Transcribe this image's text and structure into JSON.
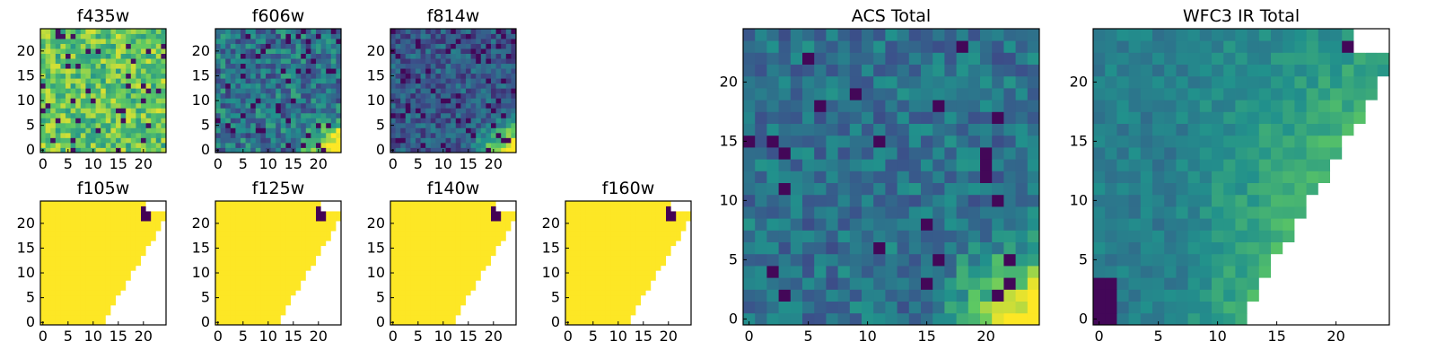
{
  "chart_data": [
    {
      "type": "heatmap",
      "title": "f435w",
      "xticks": [
        "0",
        "5",
        "10",
        "15",
        "20"
      ],
      "yticks": [
        "0",
        "5",
        "10",
        "15",
        "20"
      ],
      "xlim": [
        -0.5,
        24.5
      ],
      "ylim": [
        -0.5,
        24.5
      ],
      "style": "noise-bright"
    },
    {
      "type": "heatmap",
      "title": "f606w",
      "xticks": [
        "0",
        "5",
        "10",
        "15",
        "20"
      ],
      "yticks": [
        "0",
        "5",
        "10",
        "15",
        "20"
      ],
      "xlim": [
        -0.5,
        24.5
      ],
      "ylim": [
        -0.5,
        24.5
      ],
      "style": "noise-dim-corner"
    },
    {
      "type": "heatmap",
      "title": "f814w",
      "xticks": [
        "0",
        "5",
        "10",
        "15",
        "20"
      ],
      "yticks": [
        "0",
        "5",
        "10",
        "15",
        "20"
      ],
      "xlim": [
        -0.5,
        24.5
      ],
      "ylim": [
        -0.5,
        24.5
      ],
      "style": "noise-dark-corner"
    },
    {
      "type": "heatmap",
      "title": "f105w",
      "xticks": [
        "0",
        "5",
        "10",
        "15",
        "20"
      ],
      "yticks": [
        "0",
        "5",
        "10",
        "15",
        "20"
      ],
      "xlim": [
        -0.5,
        24.5
      ],
      "ylim": [
        -0.5,
        24.5
      ],
      "style": "saturated-mask"
    },
    {
      "type": "heatmap",
      "title": "f125w",
      "xticks": [
        "0",
        "5",
        "10",
        "15",
        "20"
      ],
      "yticks": [
        "0",
        "5",
        "10",
        "15",
        "20"
      ],
      "xlim": [
        -0.5,
        24.5
      ],
      "ylim": [
        -0.5,
        24.5
      ],
      "style": "saturated-mask"
    },
    {
      "type": "heatmap",
      "title": "f140w",
      "xticks": [
        "0",
        "5",
        "10",
        "15",
        "20"
      ],
      "yticks": [
        "0",
        "5",
        "10",
        "15",
        "20"
      ],
      "xlim": [
        -0.5,
        24.5
      ],
      "ylim": [
        -0.5,
        24.5
      ],
      "style": "saturated-mask"
    },
    {
      "type": "heatmap",
      "title": "f160w",
      "xticks": [
        "0",
        "5",
        "10",
        "15",
        "20"
      ],
      "yticks": [
        "0",
        "5",
        "10",
        "15",
        "20"
      ],
      "xlim": [
        -0.5,
        24.5
      ],
      "ylim": [
        -0.5,
        24.5
      ],
      "style": "saturated-mask"
    },
    {
      "type": "heatmap",
      "title": "ACS Total",
      "xticks": [
        "0",
        "5",
        "10",
        "15",
        "20"
      ],
      "yticks": [
        "0",
        "5",
        "10",
        "15",
        "20"
      ],
      "xlim": [
        -0.5,
        24.5
      ],
      "ylim": [
        -0.5,
        24.5
      ],
      "style": "noise-corner"
    },
    {
      "type": "heatmap",
      "title": "WFC3 IR Total",
      "xticks": [
        "0",
        "5",
        "10",
        "15",
        "20"
      ],
      "yticks": [
        "0",
        "5",
        "10",
        "15",
        "20"
      ],
      "xlim": [
        -0.5,
        24.5
      ],
      "ylim": [
        -0.5,
        24.5
      ],
      "style": "masked-gradient"
    }
  ],
  "colormap": [
    "#440154",
    "#3b528b",
    "#21918c",
    "#5ec962",
    "#fde725"
  ],
  "mask_color": "#ffffff",
  "grid": 25
}
